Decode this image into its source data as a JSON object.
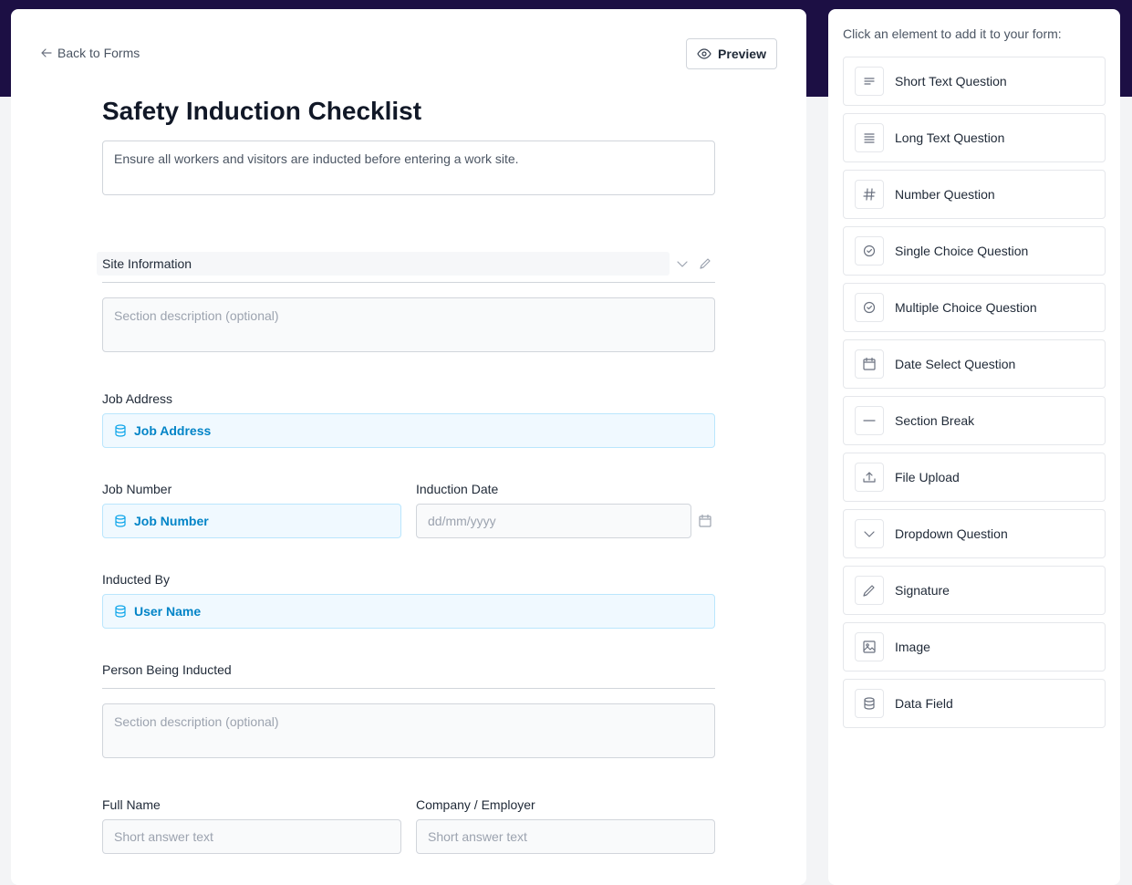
{
  "header": {
    "back_link": "Back to Forms",
    "preview_button": "Preview"
  },
  "form": {
    "title": "Safety Induction Checklist",
    "description": "Ensure all workers and visitors are inducted before entering a work site.",
    "sections": [
      {
        "title": "Site Information",
        "description_placeholder": "Section description (optional)",
        "fields": [
          {
            "label": "Job Address",
            "data_field": "Job Address"
          },
          {
            "label": "Job Number",
            "data_field": "Job Number"
          },
          {
            "label": "Induction Date",
            "placeholder": "dd/mm/yyyy"
          },
          {
            "label": "Inducted By",
            "data_field": "User Name"
          }
        ]
      },
      {
        "title": "Person Being Inducted",
        "description_placeholder": "Section description (optional)",
        "fields": [
          {
            "label": "Full Name",
            "placeholder": "Short answer text"
          },
          {
            "label": "Company / Employer",
            "placeholder": "Short answer text"
          }
        ]
      }
    ]
  },
  "palette": {
    "instruction": "Click an element to add it to your form:",
    "items": [
      "Short Text Question",
      "Long Text Question",
      "Number Question",
      "Single Choice Question",
      "Multiple Choice Question",
      "Date Select Question",
      "Section Break",
      "File Upload",
      "Dropdown Question",
      "Signature",
      "Image",
      "Data Field"
    ]
  }
}
